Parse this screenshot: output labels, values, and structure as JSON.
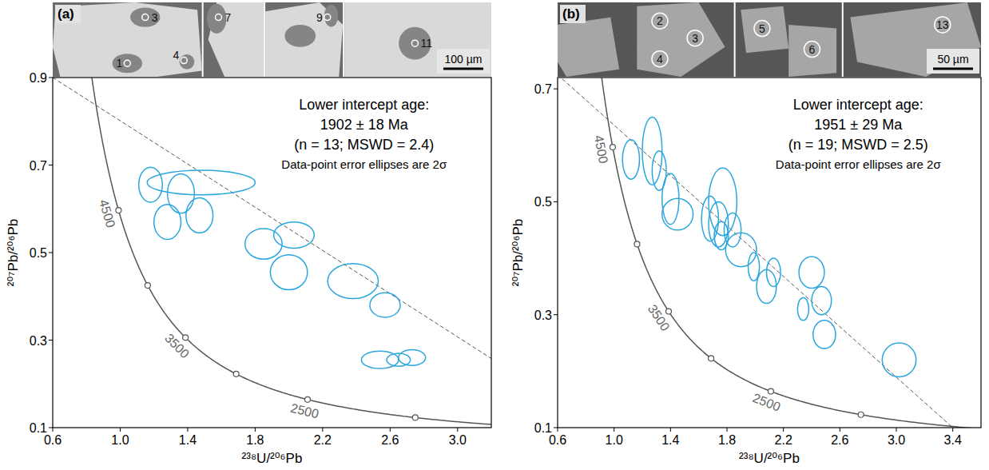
{
  "chart_data": [
    {
      "type": "scatter",
      "panel_label": "(a)",
      "x_label": "²³⁸U/²⁰⁶Pb",
      "y_label": "²⁰⁷Pb/²⁰⁶Pb",
      "xlim": [
        0.6,
        3.2
      ],
      "ylim": [
        0.1,
        0.9
      ],
      "xticks": [
        0.6,
        {
          "value": 1,
          "label": "1.0"
        },
        1.4,
        1.8,
        2.2,
        2.6,
        {
          "value": 3,
          "label": "3.0"
        }
      ],
      "yticks": [
        0.1,
        0.3,
        0.5,
        0.7,
        0.9
      ],
      "grid": false,
      "annotations": [
        "Lower intercept age:",
        "1902 ± 18 Ma",
        "(n = 13; MSWD = 2.4)",
        "Data-point error ellipses are 2σ"
      ],
      "series": [
        {
          "color": "#2ba6de",
          "marker": "ellipse",
          "x": [
            1.18,
            1.36,
            1.48,
            1.28,
            1.47,
            1.85,
            2.03,
            2.0,
            2.38,
            2.57,
            2.54,
            2.65,
            2.73
          ],
          "values": [
            0.655,
            0.635,
            0.66,
            0.57,
            0.585,
            0.52,
            0.54,
            0.455,
            0.435,
            0.38,
            0.255,
            0.255,
            0.26
          ],
          "x_err": [
            0.07,
            0.08,
            0.32,
            0.08,
            0.08,
            0.11,
            0.12,
            0.11,
            0.15,
            0.09,
            0.11,
            0.07,
            0.08
          ],
          "y_err": [
            0.04,
            0.045,
            0.028,
            0.04,
            0.04,
            0.035,
            0.03,
            0.04,
            0.04,
            0.028,
            0.02,
            0.015,
            0.018
          ]
        }
      ],
      "discordia": {
        "x": [
          0.6,
          3.2
        ],
        "y": [
          0.9,
          0.258
        ],
        "line_style": "dashed"
      },
      "concordia_ticks": [
        {
          "value": 2000,
          "label": null
        },
        2500,
        {
          "value": 3000,
          "label": null
        },
        3500,
        {
          "value": 4000,
          "label": null
        },
        4500
      ],
      "images": [
        {
          "spots": [
            "3",
            "1",
            "4"
          ]
        },
        {
          "spots": [
            "7"
          ]
        },
        {
          "spots": [
            "9"
          ]
        },
        {
          "spots": [
            "11"
          ]
        }
      ],
      "scale_bar": "100 µm"
    },
    {
      "type": "scatter",
      "panel_label": "(b)",
      "x_label": "²³⁸U/²⁰⁶Pb",
      "y_label": "²⁰⁷Pb/²⁰⁶Pb",
      "xlim": [
        0.6,
        3.6
      ],
      "ylim": [
        0.1,
        0.72
      ],
      "xticks": [
        0.6,
        {
          "value": 1,
          "label": "1.0"
        },
        1.4,
        1.8,
        2.2,
        2.6,
        {
          "value": 3,
          "label": "3.0"
        },
        3.4
      ],
      "yticks": [
        0.1,
        0.3,
        0.5,
        0.7
      ],
      "grid": false,
      "annotations": [
        "Lower intercept age:",
        "1951 ± 29 Ma",
        "(n = 19; MSWD = 2.5)",
        "Data-point error ellipses are 2σ"
      ],
      "series": [
        {
          "color": "#2ba6de",
          "marker": "ellipse",
          "x": [
            1.12,
            1.27,
            1.32,
            1.4,
            1.45,
            1.68,
            1.77,
            1.74,
            1.76,
            1.84,
            1.9,
            1.99,
            2.13,
            2.08,
            2.4,
            2.34,
            2.47,
            2.49,
            3.02
          ],
          "values": [
            0.575,
            0.59,
            0.555,
            0.505,
            0.478,
            0.47,
            0.5,
            0.46,
            0.44,
            0.45,
            0.415,
            0.385,
            0.375,
            0.35,
            0.375,
            0.31,
            0.325,
            0.265,
            0.22
          ],
          "x_err": [
            0.06,
            0.07,
            0.05,
            0.06,
            0.11,
            0.06,
            0.1,
            0.07,
            0.05,
            0.06,
            0.11,
            0.04,
            0.05,
            0.07,
            0.09,
            0.04,
            0.07,
            0.08,
            0.12
          ],
          "y_err": [
            0.035,
            0.06,
            0.035,
            0.045,
            0.028,
            0.04,
            0.06,
            0.04,
            0.025,
            0.03,
            0.03,
            0.025,
            0.025,
            0.03,
            0.028,
            0.02,
            0.025,
            0.025,
            0.03
          ]
        }
      ],
      "discordia": {
        "x": [
          0.6,
          3.4
        ],
        "y": [
          0.725,
          0.1
        ],
        "line_style": "dashed"
      },
      "concordia_ticks": [
        {
          "value": 2000,
          "label": null
        },
        2500,
        {
          "value": 3000,
          "label": null
        },
        3500,
        {
          "value": 4000,
          "label": null
        },
        4500
      ],
      "images": [
        {
          "spots": [
            "2",
            "3",
            "4"
          ]
        },
        {
          "spots": [
            "5",
            "6"
          ]
        },
        {
          "spots": [
            "13"
          ]
        }
      ],
      "scale_bar": "50 µm"
    }
  ]
}
